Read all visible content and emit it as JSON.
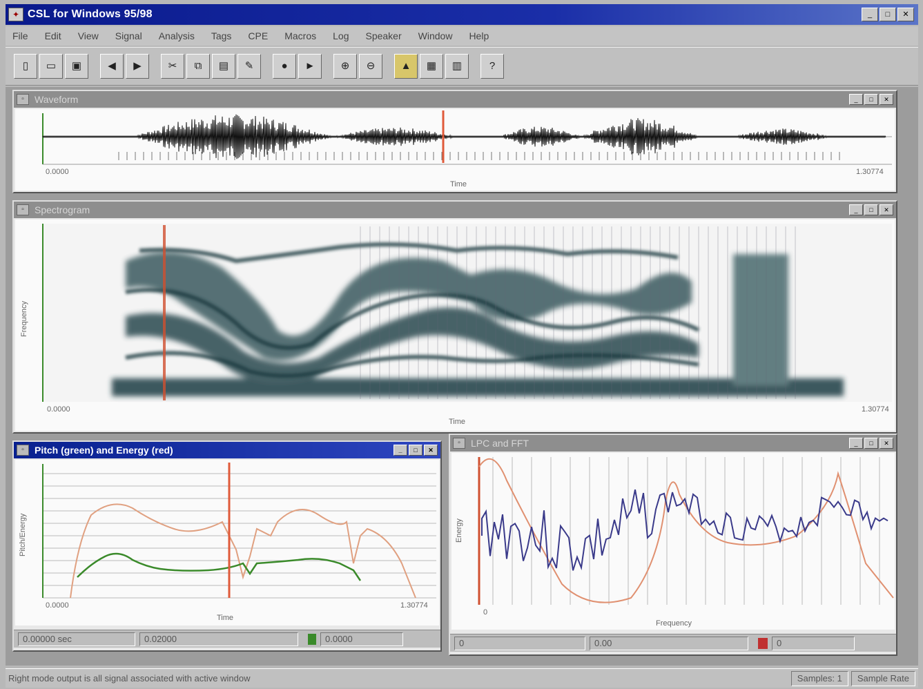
{
  "window": {
    "title": "CSL for Windows 95/98"
  },
  "menu": [
    "File",
    "Edit",
    "View",
    "Signal",
    "Analysis",
    "Tags",
    "CPE",
    "Macros",
    "Log",
    "Speaker",
    "Window",
    "Help"
  ],
  "toolbar": {
    "buttons": [
      "new-icon",
      "open-icon",
      "save-icon",
      "back-icon",
      "forward-icon",
      "cut-icon",
      "copy-icon",
      "paste-icon",
      "edit-icon",
      "record-icon",
      "play-icon",
      "zoom-in-icon",
      "zoom-out-icon",
      "spectrum-icon",
      "window-icon",
      "tile-icon",
      "help-icon"
    ]
  },
  "waveform_window": {
    "title": "Waveform",
    "start_time": "0.0000",
    "end_time": "1.30774",
    "xlabel": "Time"
  },
  "spectrogram_window": {
    "title": "Spectrogram",
    "start_time": "0.0000",
    "end_time": "1.30774",
    "xlabel": "Time",
    "ylabel": "Frequency"
  },
  "pitch_window": {
    "title": "Pitch (green) and Energy (red)",
    "start_time": "0.0000",
    "end_time": "1.30774",
    "xlabel": "Time",
    "ylabel": "Pitch/Energy",
    "status": {
      "left": "0.00000 sec",
      "mid": "0.02000",
      "right": "0.0000"
    }
  },
  "lpc_window": {
    "title": "LPC and FFT",
    "xlabel": "Frequency",
    "ylabel": "Energy",
    "status": {
      "left": "0",
      "mid": "0.00",
      "right": "0"
    }
  },
  "statusbar": {
    "message": "Right mode output is all signal associated with active window",
    "field1": "Samples: 1",
    "field2": "Sample Rate"
  },
  "colors": {
    "title_active": "#08208f",
    "cursor": "#e05a3a",
    "pitch": "#3a8a2a",
    "energy": "#e0a080",
    "lpc": "#e09070",
    "fft": "#3a3a8a"
  }
}
